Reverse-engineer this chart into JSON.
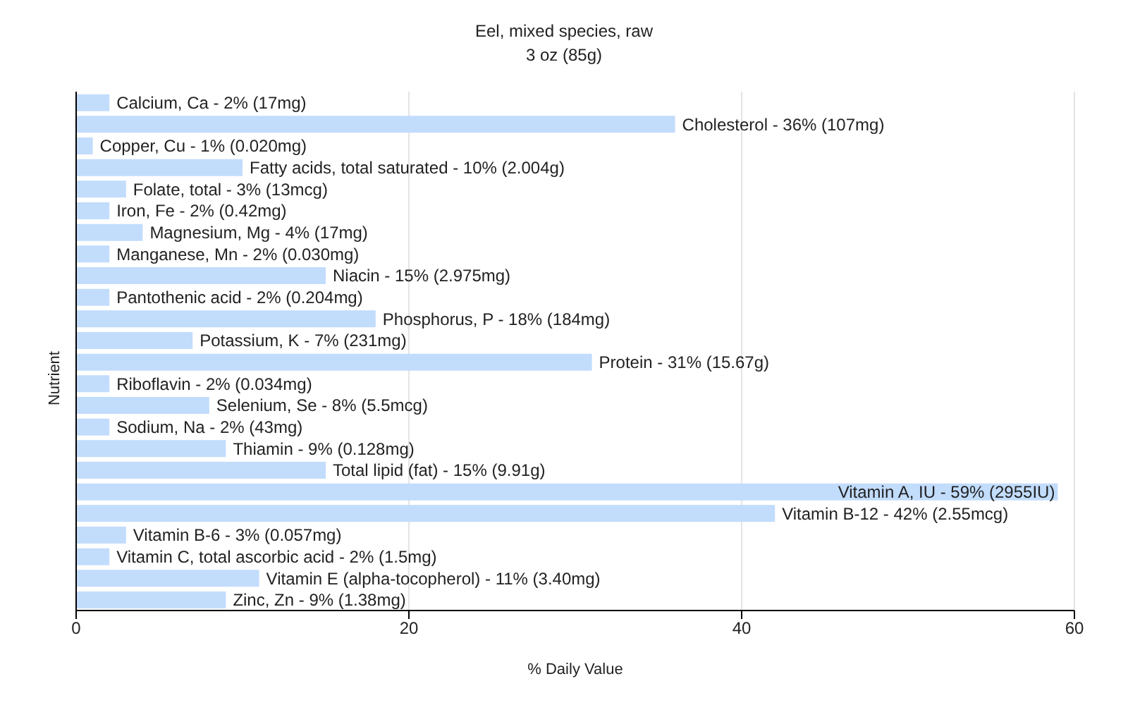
{
  "chart_data": {
    "type": "bar",
    "orientation": "horizontal",
    "title": "Eel, mixed species, raw",
    "subtitle": "3 oz (85g)",
    "xlabel": "% Daily Value",
    "ylabel": "Nutrient",
    "categories": [
      "Calcium, Ca - 2% (17mg)",
      "Cholesterol - 36% (107mg)",
      "Copper, Cu - 1% (0.020mg)",
      "Fatty acids, total saturated - 10% (2.004g)",
      "Folate, total - 3% (13mcg)",
      "Iron, Fe - 2% (0.42mg)",
      "Magnesium, Mg - 4% (17mg)",
      "Manganese, Mn - 2% (0.030mg)",
      "Niacin - 15% (2.975mg)",
      "Pantothenic acid - 2% (0.204mg)",
      "Phosphorus, P - 18% (184mg)",
      "Potassium, K - 7% (231mg)",
      "Protein - 31% (15.67g)",
      "Riboflavin - 2% (0.034mg)",
      "Selenium, Se - 8% (5.5mcg)",
      "Sodium, Na - 2% (43mg)",
      "Thiamin - 9% (0.128mg)",
      "Total lipid (fat) - 15% (9.91g)",
      "Vitamin A, IU - 59% (2955IU)",
      "Vitamin B-12 - 42% (2.55mcg)",
      "Vitamin B-6 - 3% (0.057mg)",
      "Vitamin C, total ascorbic acid - 2% (1.5mg)",
      "Vitamin E (alpha-tocopherol) - 11% (3.40mg)",
      "Zinc, Zn - 9% (1.38mg)"
    ],
    "values": [
      2,
      36,
      1,
      10,
      3,
      2,
      4,
      2,
      15,
      2,
      18,
      7,
      31,
      2,
      8,
      2,
      9,
      15,
      59,
      42,
      3,
      2,
      11,
      9
    ],
    "color": "#c2dcfc",
    "xlim": [
      0,
      60
    ],
    "xticks": [
      0,
      20,
      40,
      60
    ],
    "grid": "x",
    "tick_labels": "x",
    "legend": false
  }
}
